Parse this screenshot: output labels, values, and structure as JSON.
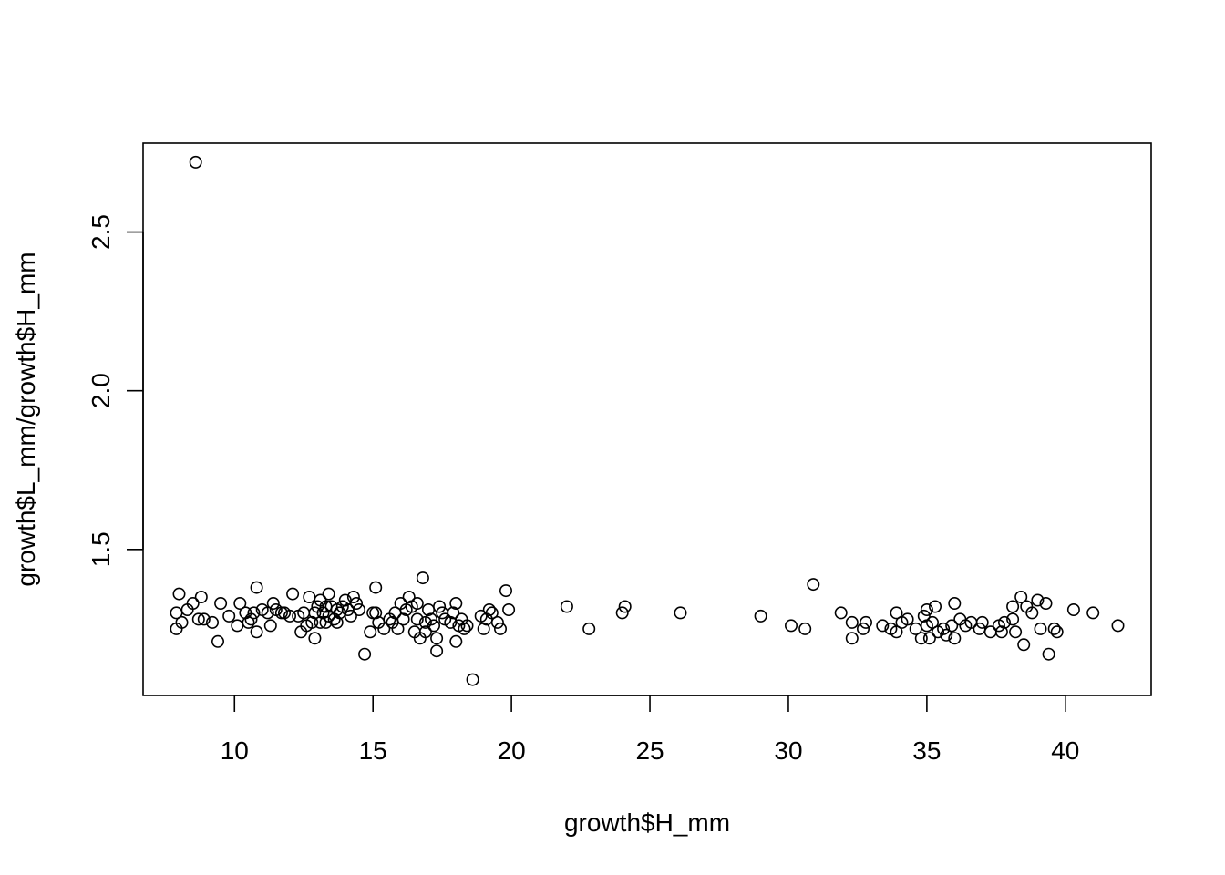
{
  "chart_data": {
    "type": "scatter",
    "title": "",
    "xlabel": "growth$H_mm",
    "ylabel": "growth$L_mm/growth$H_mm",
    "xlim": [
      6.7,
      43.1
    ],
    "ylim": [
      1.04,
      2.78
    ],
    "x_ticks": [
      10,
      15,
      20,
      25,
      30,
      35,
      40
    ],
    "y_ticks": [
      1.5,
      2.0,
      2.5
    ],
    "x_tick_labels": [
      "10",
      "15",
      "20",
      "25",
      "30",
      "35",
      "40"
    ],
    "y_tick_labels": [
      "1.5",
      "2.0",
      "2.5"
    ],
    "grid": false,
    "legend": "none",
    "marker": "open-circle",
    "colors": {
      "points": "#000000",
      "axes": "#000000",
      "background": "#ffffff"
    },
    "points": [
      [
        8.6,
        2.72
      ],
      [
        7.9,
        1.3
      ],
      [
        7.9,
        1.25
      ],
      [
        8.0,
        1.36
      ],
      [
        8.1,
        1.27
      ],
      [
        8.3,
        1.31
      ],
      [
        8.5,
        1.33
      ],
      [
        8.7,
        1.28
      ],
      [
        8.8,
        1.35
      ],
      [
        8.9,
        1.28
      ],
      [
        9.2,
        1.27
      ],
      [
        9.4,
        1.21
      ],
      [
        9.5,
        1.33
      ],
      [
        9.8,
        1.29
      ],
      [
        10.1,
        1.26
      ],
      [
        10.2,
        1.33
      ],
      [
        10.4,
        1.3
      ],
      [
        10.5,
        1.27
      ],
      [
        10.6,
        1.28
      ],
      [
        10.7,
        1.3
      ],
      [
        10.8,
        1.24
      ],
      [
        10.8,
        1.38
      ],
      [
        11.0,
        1.31
      ],
      [
        11.2,
        1.3
      ],
      [
        11.3,
        1.26
      ],
      [
        11.4,
        1.33
      ],
      [
        11.5,
        1.31
      ],
      [
        11.7,
        1.3
      ],
      [
        11.8,
        1.3
      ],
      [
        12.0,
        1.29
      ],
      [
        12.1,
        1.36
      ],
      [
        12.3,
        1.29
      ],
      [
        12.4,
        1.24
      ],
      [
        12.5,
        1.3
      ],
      [
        12.6,
        1.26
      ],
      [
        12.7,
        1.35
      ],
      [
        12.8,
        1.27
      ],
      [
        12.9,
        1.3
      ],
      [
        12.9,
        1.22
      ],
      [
        13.0,
        1.32
      ],
      [
        13.1,
        1.27
      ],
      [
        13.1,
        1.34
      ],
      [
        13.2,
        1.3
      ],
      [
        13.3,
        1.32
      ],
      [
        13.3,
        1.27
      ],
      [
        13.4,
        1.36
      ],
      [
        13.4,
        1.29
      ],
      [
        13.5,
        1.32
      ],
      [
        13.6,
        1.28
      ],
      [
        13.7,
        1.31
      ],
      [
        13.7,
        1.27
      ],
      [
        13.8,
        1.3
      ],
      [
        13.9,
        1.32
      ],
      [
        14.0,
        1.34
      ],
      [
        14.1,
        1.31
      ],
      [
        14.2,
        1.29
      ],
      [
        14.3,
        1.35
      ],
      [
        14.4,
        1.33
      ],
      [
        14.5,
        1.31
      ],
      [
        14.7,
        1.17
      ],
      [
        14.9,
        1.24
      ],
      [
        15.0,
        1.3
      ],
      [
        15.1,
        1.38
      ],
      [
        15.1,
        1.3
      ],
      [
        15.2,
        1.27
      ],
      [
        15.4,
        1.25
      ],
      [
        15.6,
        1.28
      ],
      [
        15.7,
        1.27
      ],
      [
        15.8,
        1.3
      ],
      [
        15.9,
        1.25
      ],
      [
        16.0,
        1.33
      ],
      [
        16.1,
        1.28
      ],
      [
        16.2,
        1.31
      ],
      [
        16.3,
        1.35
      ],
      [
        16.4,
        1.32
      ],
      [
        16.5,
        1.24
      ],
      [
        16.6,
        1.33
      ],
      [
        16.6,
        1.28
      ],
      [
        16.7,
        1.22
      ],
      [
        16.8,
        1.41
      ],
      [
        16.9,
        1.27
      ],
      [
        16.9,
        1.24
      ],
      [
        17.0,
        1.31
      ],
      [
        17.1,
        1.28
      ],
      [
        17.2,
        1.26
      ],
      [
        17.3,
        1.22
      ],
      [
        17.3,
        1.18
      ],
      [
        17.4,
        1.32
      ],
      [
        17.5,
        1.3
      ],
      [
        17.6,
        1.28
      ],
      [
        17.8,
        1.27
      ],
      [
        17.9,
        1.3
      ],
      [
        18.0,
        1.33
      ],
      [
        18.0,
        1.21
      ],
      [
        18.1,
        1.26
      ],
      [
        18.2,
        1.28
      ],
      [
        18.3,
        1.25
      ],
      [
        18.4,
        1.26
      ],
      [
        18.6,
        1.09
      ],
      [
        18.9,
        1.29
      ],
      [
        19.0,
        1.25
      ],
      [
        19.1,
        1.28
      ],
      [
        19.2,
        1.31
      ],
      [
        19.3,
        1.3
      ],
      [
        19.5,
        1.27
      ],
      [
        19.6,
        1.25
      ],
      [
        19.8,
        1.37
      ],
      [
        19.9,
        1.31
      ],
      [
        22.0,
        1.32
      ],
      [
        22.8,
        1.25
      ],
      [
        24.0,
        1.3
      ],
      [
        24.1,
        1.32
      ],
      [
        26.1,
        1.3
      ],
      [
        29.0,
        1.29
      ],
      [
        30.1,
        1.26
      ],
      [
        30.6,
        1.25
      ],
      [
        30.9,
        1.39
      ],
      [
        31.9,
        1.3
      ],
      [
        32.3,
        1.27
      ],
      [
        32.3,
        1.22
      ],
      [
        32.7,
        1.25
      ],
      [
        32.8,
        1.27
      ],
      [
        33.4,
        1.26
      ],
      [
        33.7,
        1.25
      ],
      [
        33.9,
        1.3
      ],
      [
        33.9,
        1.24
      ],
      [
        34.1,
        1.27
      ],
      [
        34.3,
        1.28
      ],
      [
        34.6,
        1.25
      ],
      [
        34.8,
        1.22
      ],
      [
        34.9,
        1.29
      ],
      [
        35.0,
        1.31
      ],
      [
        35.0,
        1.26
      ],
      [
        35.1,
        1.22
      ],
      [
        35.2,
        1.27
      ],
      [
        35.3,
        1.32
      ],
      [
        35.4,
        1.24
      ],
      [
        35.6,
        1.25
      ],
      [
        35.7,
        1.23
      ],
      [
        35.9,
        1.26
      ],
      [
        36.0,
        1.22
      ],
      [
        36.0,
        1.33
      ],
      [
        36.2,
        1.28
      ],
      [
        36.4,
        1.26
      ],
      [
        36.6,
        1.27
      ],
      [
        36.9,
        1.25
      ],
      [
        37.0,
        1.27
      ],
      [
        37.3,
        1.24
      ],
      [
        37.6,
        1.26
      ],
      [
        37.7,
        1.24
      ],
      [
        37.8,
        1.27
      ],
      [
        38.1,
        1.32
      ],
      [
        38.1,
        1.28
      ],
      [
        38.2,
        1.24
      ],
      [
        38.4,
        1.35
      ],
      [
        38.5,
        1.2
      ],
      [
        38.6,
        1.32
      ],
      [
        38.8,
        1.3
      ],
      [
        39.0,
        1.34
      ],
      [
        39.1,
        1.25
      ],
      [
        39.3,
        1.33
      ],
      [
        39.4,
        1.17
      ],
      [
        39.6,
        1.25
      ],
      [
        39.7,
        1.24
      ],
      [
        40.3,
        1.31
      ],
      [
        41.0,
        1.3
      ],
      [
        41.9,
        1.26
      ]
    ]
  }
}
